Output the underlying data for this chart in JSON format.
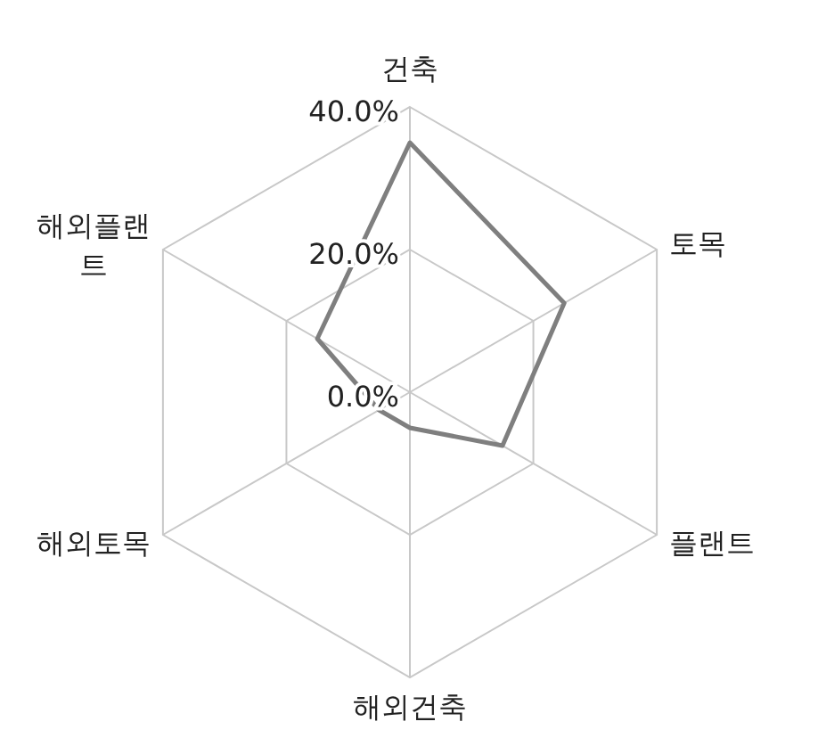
{
  "chart_data": {
    "type": "radar",
    "categories": [
      "건축",
      "토목",
      "플랜트",
      "해외건축",
      "해외토목",
      "해외플랜트"
    ],
    "series": [
      {
        "color": "#7f7f7f",
        "values": [
          35,
          25,
          15,
          5,
          5,
          15
        ]
      }
    ],
    "ylim": [
      0,
      40
    ],
    "yticks": [
      {
        "value": 0,
        "label": "0.0%"
      },
      {
        "value": 20,
        "label": "20.0%"
      },
      {
        "value": 40,
        "label": "40.0%"
      }
    ],
    "grid": true,
    "legend": false,
    "marker": "none"
  }
}
